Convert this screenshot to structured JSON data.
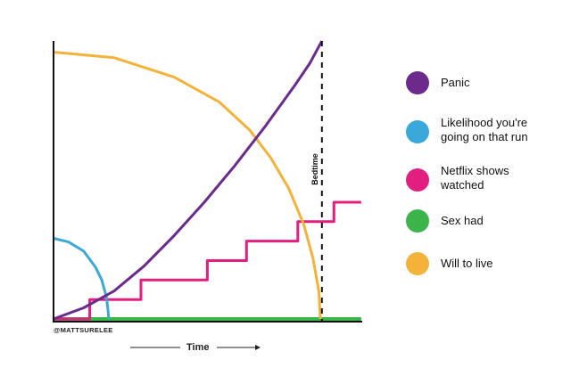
{
  "chart_data": {
    "type": "line",
    "title": "",
    "xlabel": "Time",
    "ylabel": "",
    "credit": "@MATTSURELEE",
    "bedtime_label": "Bedtime",
    "grid": false,
    "legend_position": "right",
    "xlim": [
      0,
      100
    ],
    "ylim": [
      0,
      100
    ],
    "bedtime_x": 89,
    "series": [
      {
        "name": "Panic",
        "color": "#6b2a8c",
        "points": [
          [
            0,
            0
          ],
          [
            10,
            4
          ],
          [
            20,
            10
          ],
          [
            30,
            19
          ],
          [
            40,
            30
          ],
          [
            50,
            42
          ],
          [
            60,
            55
          ],
          [
            70,
            69
          ],
          [
            80,
            84
          ],
          [
            85,
            92
          ],
          [
            88,
            98
          ],
          [
            89,
            100
          ]
        ]
      },
      {
        "name": "Likelihood you're going on that run",
        "color": "#3aa8d8",
        "points": [
          [
            0,
            29
          ],
          [
            5,
            27.7
          ],
          [
            10,
            24.4
          ],
          [
            14,
            18.5
          ],
          [
            16,
            14
          ],
          [
            17.5,
            8
          ],
          [
            18,
            4
          ],
          [
            18.3,
            0
          ]
        ]
      },
      {
        "name": "Netflix shows watched",
        "color": "#e21f7f",
        "points": [
          [
            0,
            0
          ],
          [
            12,
            0
          ],
          [
            12,
            7
          ],
          [
            29,
            7
          ],
          [
            29,
            14
          ],
          [
            51,
            14
          ],
          [
            51,
            21
          ],
          [
            64,
            21
          ],
          [
            64,
            28
          ],
          [
            81,
            28
          ],
          [
            81,
            35
          ],
          [
            93,
            35
          ],
          [
            93,
            42
          ],
          [
            102,
            42
          ]
        ]
      },
      {
        "name": "Sex had",
        "color": "#3bb44a",
        "points": [
          [
            0,
            0
          ],
          [
            102,
            0
          ]
        ]
      },
      {
        "name": "Will to live",
        "color": "#f4b23a",
        "points": [
          [
            0,
            96
          ],
          [
            20,
            94
          ],
          [
            40,
            87
          ],
          [
            55,
            78
          ],
          [
            65,
            68
          ],
          [
            72,
            58
          ],
          [
            78,
            47
          ],
          [
            83,
            34
          ],
          [
            86,
            22
          ],
          [
            88,
            10
          ],
          [
            88.5,
            0
          ]
        ]
      }
    ]
  }
}
